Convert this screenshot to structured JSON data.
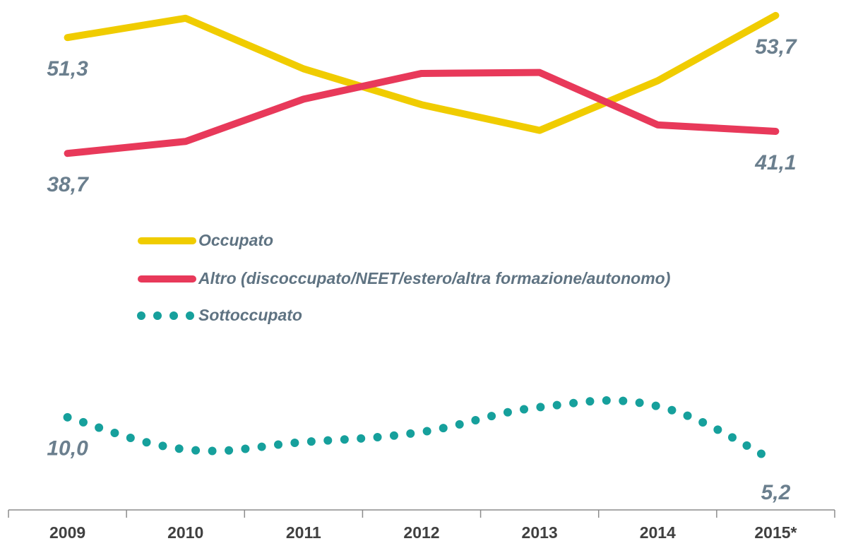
{
  "chart_data": {
    "type": "line",
    "categories": [
      "2009",
      "2010",
      "2011",
      "2012",
      "2013",
      "2014",
      "2015*"
    ],
    "series": [
      {
        "name": "Occupato",
        "color": "#f0cc00",
        "style": "solid",
        "values": [
          51.3,
          53.4,
          47.9,
          44.0,
          41.2,
          46.6,
          53.7
        ],
        "value_labels": [
          "51,3",
          null,
          null,
          null,
          null,
          null,
          "53,7"
        ]
      },
      {
        "name": "Altro (discoccupato/NEET/estero/altra formazione/autonomo)",
        "color": "#e8395a",
        "style": "solid",
        "values": [
          38.7,
          40.0,
          44.6,
          47.4,
          47.5,
          41.8,
          41.1
        ],
        "value_labels": [
          "38,7",
          null,
          null,
          null,
          null,
          null,
          "41,1"
        ]
      },
      {
        "name": "Sottoccupato",
        "color": "#16a09c",
        "style": "dotted",
        "values": [
          10.0,
          6.5,
          7.3,
          8.4,
          11.1,
          11.2,
          5.2
        ],
        "value_labels": [
          "10,0",
          null,
          null,
          null,
          null,
          null,
          "5,2"
        ]
      }
    ],
    "ylim": [
      0,
      55
    ]
  }
}
